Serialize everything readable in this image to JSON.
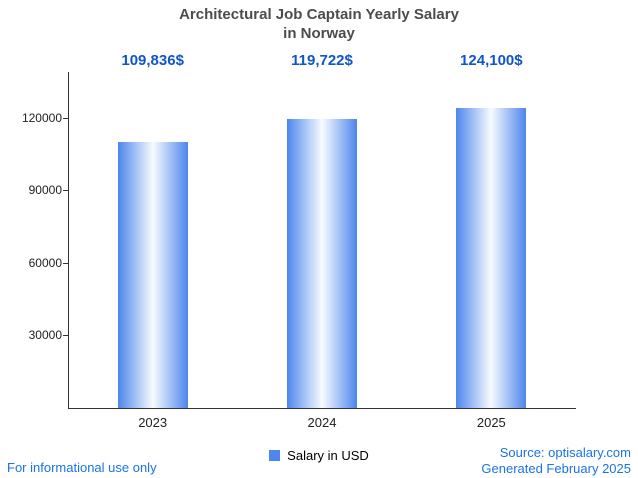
{
  "title": {
    "line1": "Architectural Job Captain Yearly Salary",
    "line2": "in Norway"
  },
  "chart_data": {
    "type": "bar",
    "title": "Architectural Job Captain Yearly Salary in Norway",
    "categories": [
      "2023",
      "2024",
      "2025"
    ],
    "values": [
      109836,
      119722,
      124100
    ],
    "value_labels": [
      "109,836$",
      "119,722$",
      "124,100$"
    ],
    "series_name": "Salary in USD",
    "xlabel": "",
    "ylabel": "",
    "ylim": [
      0,
      139000
    ],
    "yticks": [
      30000,
      60000,
      90000,
      120000
    ],
    "grid": false,
    "legend_position": "bottom"
  },
  "legend": {
    "label": "Salary in USD",
    "swatch_color": "#4d86ec"
  },
  "footer": {
    "left": "For informational use only",
    "source": "Source: optisalary.com",
    "generated": "Generated February 2025"
  },
  "colors": {
    "annotation": "#1155cc",
    "link": "#1a73e8",
    "bar_edge": "#4d86ec",
    "bar_center": "#f7fbff",
    "axis": "#333333",
    "title": "#4c4c4c"
  }
}
